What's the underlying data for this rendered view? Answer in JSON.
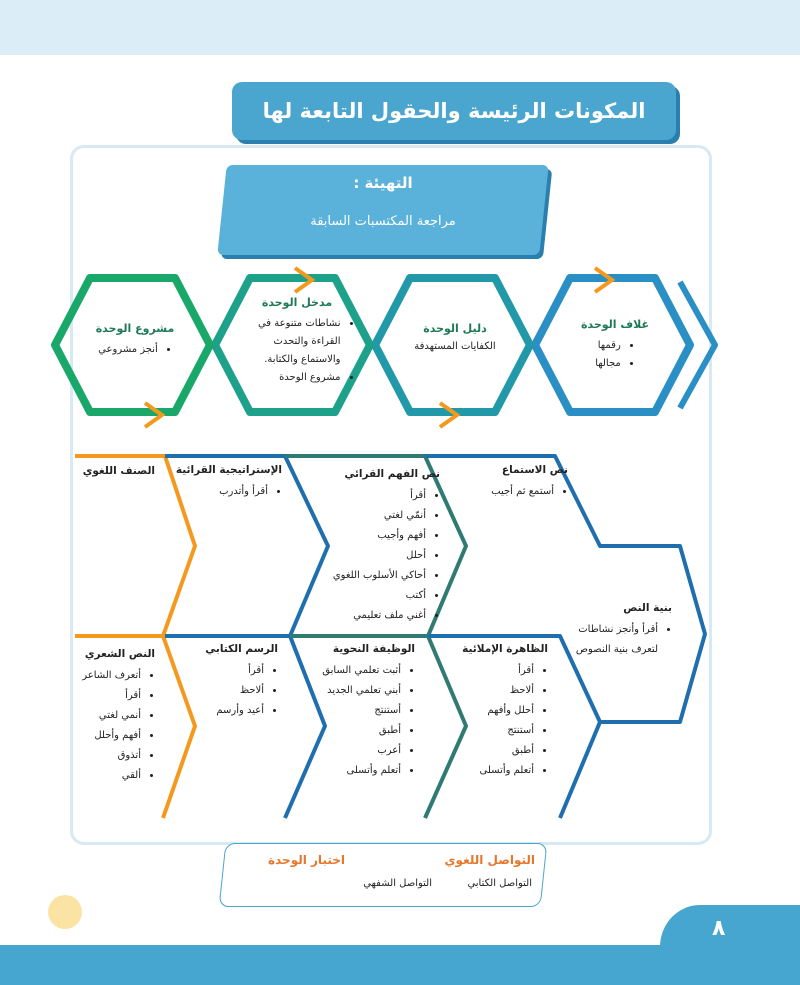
{
  "title": "المكونات الرئيسة والحقول التابعة لها",
  "intro": {
    "title": "التهيئة :",
    "subtitle": "مراجعة المكتسبات السابقة"
  },
  "hexagons": [
    {
      "title": "غلاف الوحدة",
      "items": [
        "رقمها",
        "مجالها"
      ]
    },
    {
      "title": "دليل الوحدة",
      "text": "الكفايات المستهدفة"
    },
    {
      "title": "مدخل الوحدة",
      "items": [
        "نشاطات متنوعة في القراءة والتحدث والاستماع والكتابة.",
        "مشروع الوحدة"
      ]
    },
    {
      "title": "مشروع الوحدة",
      "items": [
        "أنجز مشروعي"
      ]
    }
  ],
  "top_row": [
    {
      "title": "نص الاستماع",
      "items": [
        "أستمع ثم أجيب"
      ]
    },
    {
      "title": "نص الفهم القرائي",
      "items": [
        "أقرأ",
        "أنمّي لغتي",
        "أفهم وأجيب",
        "أحلل",
        "أحاكي الأسلوب اللغوي",
        "أكتب",
        "أغني ملف تعليمي"
      ]
    },
    {
      "title": "الإستراتيجية القرائية",
      "items": [
        "أقرأ وأتدرب"
      ]
    },
    {
      "title": "الصنف اللغوي",
      "items": []
    }
  ],
  "text_structure": {
    "title": "بنية النص",
    "items": [
      "أقرأ وأنجز نشاطات لتعرف بنية النصوص"
    ]
  },
  "bottom_row": [
    {
      "title": "الظاهرة الإملائية",
      "items": [
        "أقرأ",
        "ألاحظ",
        "أحلل وأفهم",
        "أستنتج",
        "أطبق",
        "أتعلم وأتسلى"
      ]
    },
    {
      "title": "الوظيفة النحوية",
      "items": [
        "أثبت تعلمي السابق",
        "أبني تعلمي الجديد",
        "أستنتج",
        "أطبق",
        "أعرب",
        "أتعلم وأتسلى"
      ]
    },
    {
      "title": "الرسم الكتابي",
      "items": [
        "أقرأ",
        "ألاحظ",
        "أعيد وأرسم"
      ]
    },
    {
      "title": "النص الشعري",
      "items": [
        "أتعرف الشاعر",
        "أقرأ",
        "أنمي لغتي",
        "أفهم وأحلل",
        "أتذوق",
        "ألقي"
      ]
    }
  ],
  "communication": {
    "title": "التواصل اللغوي",
    "items": [
      "التواصل الكتابي",
      "التواصل الشفهي"
    ],
    "test": "اختبار الوحدة"
  },
  "page_number": "٨",
  "colors": {
    "blue": "#4aa5cf",
    "orange": "#f39a1e",
    "green": "#1aa86a",
    "teal": "#2f7a72",
    "darkblue": "#1f6fae"
  }
}
